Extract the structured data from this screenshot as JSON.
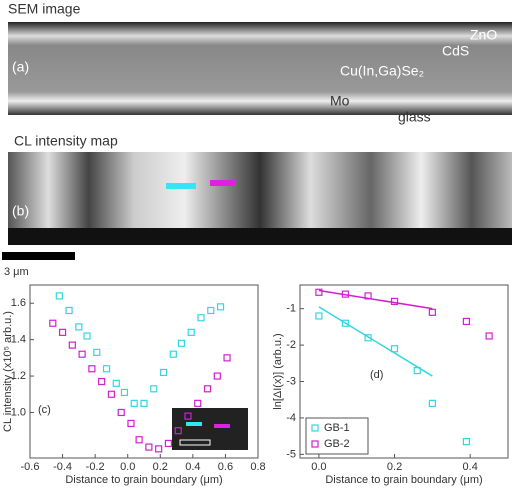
{
  "panels": {
    "sem": {
      "title": "SEM image",
      "label": "(a)",
      "layers": [
        "ZnO",
        "CdS",
        "Cu(In,Ga)Se₂",
        "Mo",
        "glass"
      ]
    },
    "cl": {
      "title": "CL intensity map",
      "label": "(b)",
      "scale": "3 μm"
    }
  },
  "chart_data": [
    {
      "type": "scatter",
      "annotation": "(c)",
      "x_label": "Distance to grain boundary (μm)",
      "y_label": "CL intensity (x10⁵ arb.u.)",
      "xlim": [
        -0.6,
        0.8
      ],
      "xticks": [
        -0.6,
        -0.4,
        -0.2,
        {
          "value": 0,
          "label": "0.0"
        },
        0.2,
        0.4,
        0.6,
        0.8
      ],
      "ylim": [
        0.75,
        1.7
      ],
      "yticks": [
        {
          "value": 1,
          "label": "1.0"
        },
        1.2,
        1.4,
        1.6
      ],
      "series": [
        {
          "color": "#33d6e0",
          "x": [
            -0.42,
            -0.36,
            -0.3,
            -0.25,
            -0.19,
            -0.13,
            -0.07,
            -0.02,
            0.04,
            0.1,
            0.16,
            0.22,
            0.28,
            0.33,
            0.39,
            0.45,
            0.51,
            0.57
          ],
          "values": [
            1.64,
            1.56,
            1.47,
            1.42,
            1.33,
            1.24,
            1.16,
            1.11,
            1.05,
            1.05,
            1.13,
            1.22,
            1.32,
            1.38,
            1.44,
            1.52,
            1.56,
            1.58
          ]
        },
        {
          "color": "#d020d0",
          "x": [
            -0.46,
            -0.4,
            -0.34,
            -0.28,
            -0.22,
            -0.16,
            -0.1,
            -0.04,
            0.02,
            0.07,
            0.13,
            0.19,
            0.25,
            0.31,
            0.37,
            0.43,
            0.49,
            0.55,
            0.61
          ],
          "values": [
            1.49,
            1.44,
            1.37,
            1.32,
            1.24,
            1.17,
            1.1,
            1.0,
            0.94,
            0.85,
            0.81,
            0.8,
            0.83,
            0.9,
            0.98,
            1.05,
            1.13,
            1.2,
            1.3
          ]
        }
      ]
    },
    {
      "type": "scatter",
      "annotation": "(d)",
      "x_label": "Distance to grain boundary (μm)",
      "y_label": "ln[ΔI(x)] (arb.u.)",
      "xlim": [
        -0.05,
        0.5
      ],
      "xticks": [
        {
          "value": 0,
          "label": "0.0"
        },
        0.2,
        0.4
      ],
      "ylim": [
        -5.1,
        -0.35
      ],
      "yticks": [
        -5,
        -4,
        -3,
        -2,
        -1
      ],
      "legend": "lower left",
      "series": [
        {
          "name": "GB-1",
          "color": "#33d6e0",
          "x": [
            0,
            0.07,
            0.13,
            0.2,
            0.26,
            0.3,
            0.39
          ],
          "values": [
            -1.2,
            -1.4,
            -1.8,
            -2.1,
            -2.7,
            -3.6,
            -4.65
          ]
        },
        {
          "name": "GB-2",
          "color": "#d020d0",
          "x": [
            0,
            0.07,
            0.13,
            0.2,
            0.3,
            0.39,
            0.45
          ],
          "values": [
            -0.55,
            -0.6,
            -0.65,
            -0.8,
            -1.1,
            -1.35,
            -1.75
          ]
        }
      ],
      "fits": [
        {
          "color": "#33d6e0",
          "x": [
            0,
            0.3
          ],
          "values": [
            -0.95,
            -2.85
          ]
        },
        {
          "color": "#d020d0",
          "x": [
            0,
            0.3
          ],
          "values": [
            -0.5,
            -1.0
          ]
        }
      ]
    }
  ]
}
